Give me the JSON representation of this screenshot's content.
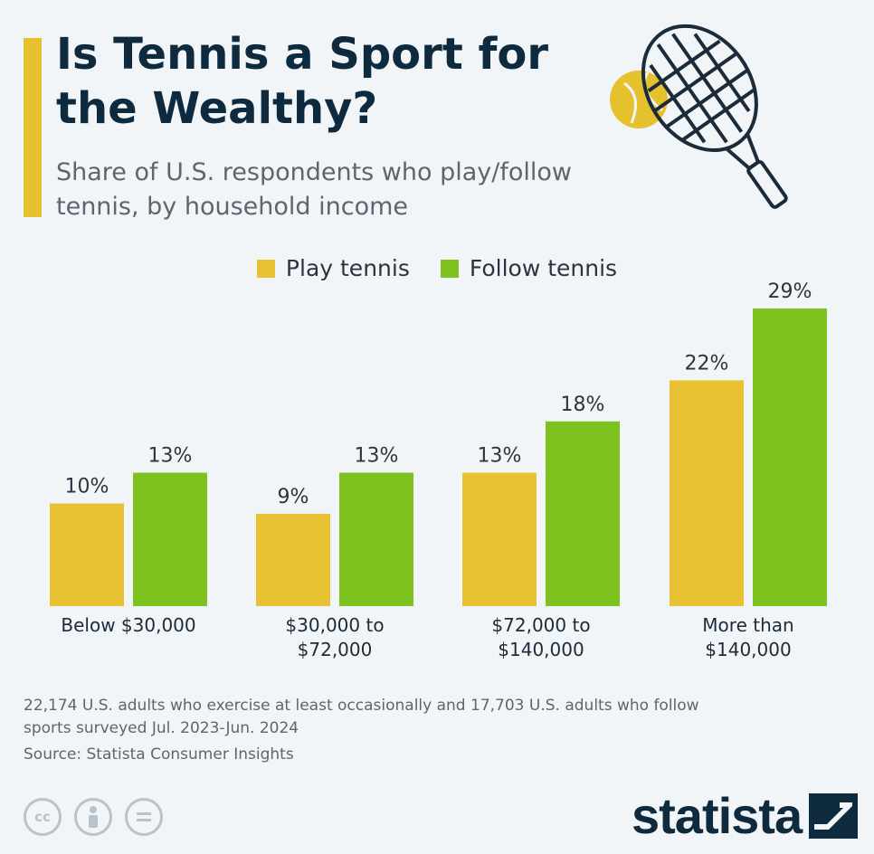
{
  "title": "Is Tennis a Sport for the Wealthy?",
  "subtitle": "Share of U.S. respondents who play/follow tennis, by household income",
  "legend": [
    {
      "label": "Play tennis",
      "color": "#e8c232"
    },
    {
      "label": "Follow tennis",
      "color": "#7dc21e"
    }
  ],
  "chart_data": {
    "type": "bar",
    "title": "Is Tennis a Sport for the Wealthy?",
    "subtitle": "Share of U.S. respondents who play/follow tennis, by household income",
    "categories": [
      [
        "Below $30,000"
      ],
      [
        "$30,000 to",
        "$72,000"
      ],
      [
        "$72,000 to",
        "$140,000"
      ],
      [
        "More than",
        "$140,000"
      ]
    ],
    "series": [
      {
        "name": "Play tennis",
        "color": "#e8c232",
        "values": [
          10,
          9,
          13,
          22
        ]
      },
      {
        "name": "Follow tennis",
        "color": "#7dc21e",
        "values": [
          13,
          13,
          18,
          29
        ]
      }
    ],
    "value_suffix": "%",
    "ylim": [
      0,
      29
    ],
    "grid": false,
    "legend_position": "top-center"
  },
  "notes": "22,174 U.S. adults who exercise at least occasionally and 17,703 U.S. adults who follow sports surveyed Jul. 2023-Jun. 2024",
  "source": "Source: Statista Consumer Insights",
  "license_icons": [
    "cc-icon",
    "attribution-icon",
    "no-derivatives-icon"
  ],
  "brand": "statista"
}
